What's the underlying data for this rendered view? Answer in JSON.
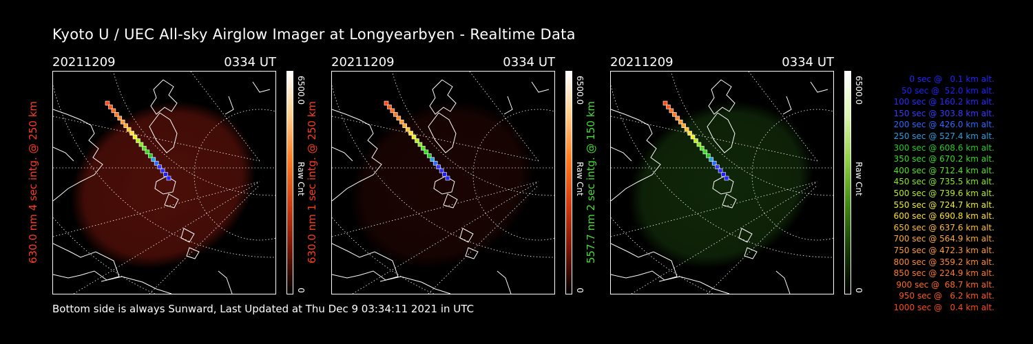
{
  "page": {
    "title": "Kyoto U / UEC All-sky Airglow Imager at Longyearbyen - Realtime Data",
    "footer": "Bottom side is always Sunward, Last Updated at Thu Dec  9 03:34:11 2021 in UTC"
  },
  "panels": [
    {
      "date": "20211209",
      "time": "0334 UT",
      "ylabel": "630.0 nm 4 sec intg. @ 250 km",
      "label_color": "#ff3b1f",
      "airglow_color": "#8b1a0f",
      "airglow_opacity": 0.55,
      "cb_max": "6500.0",
      "cb_unit": "Raw Cnt",
      "cb_min": "0",
      "cb_gradient": [
        "#ffffff",
        "#ffcc88",
        "#ff7a20",
        "#d23a10",
        "#7a1505",
        "#000000"
      ]
    },
    {
      "date": "20211209",
      "time": "0334 UT",
      "ylabel": "630.0 nm 1 sec intg. @ 250 km",
      "label_color": "#ff3b1f",
      "airglow_color": "#3a0905",
      "airglow_opacity": 0.45,
      "cb_max": "6500.0",
      "cb_unit": "Raw Cnt",
      "cb_min": "0",
      "cb_gradient": [
        "#ffffff",
        "#ffcc88",
        "#ff7a20",
        "#d23a10",
        "#7a1505",
        "#000000"
      ]
    },
    {
      "date": "20211209",
      "time": "0334 UT",
      "ylabel": "557.7 nm 2 sec intg. @ 150 km",
      "label_color": "#44dd33",
      "airglow_color": "#1f4d12",
      "airglow_opacity": 0.5,
      "cb_max": "6500.0",
      "cb_unit": "Raw Cnt",
      "cb_min": "0",
      "cb_gradient": [
        "#ffffff",
        "#d9f5b0",
        "#8fd140",
        "#3f8a10",
        "#163d06",
        "#000000"
      ]
    }
  ],
  "legend": [
    {
      "text": "0 sec @   0.1 km alt.",
      "color": "#2424ff"
    },
    {
      "text": "50 sec @  52.0 km alt.",
      "color": "#2020ff"
    },
    {
      "text": "100 sec @ 160.2 km alt.",
      "color": "#2a2aff"
    },
    {
      "text": "150 sec @ 303.8 km alt.",
      "color": "#3a3aff"
    },
    {
      "text": "200 sec @ 426.0 km alt.",
      "color": "#2a6aff"
    },
    {
      "text": "250 sec @ 527.4 km alt.",
      "color": "#2aa0e0"
    },
    {
      "text": "300 sec @ 608.6 km alt.",
      "color": "#22cc22"
    },
    {
      "text": "350 sec @ 670.2 km alt.",
      "color": "#33dd22"
    },
    {
      "text": "400 sec @ 712.4 km alt.",
      "color": "#55e022"
    },
    {
      "text": "450 sec @ 735.5 km alt.",
      "color": "#88e822"
    },
    {
      "text": "500 sec @ 739.6 km alt.",
      "color": "#b8ee22"
    },
    {
      "text": "550 sec @ 724.7 km alt.",
      "color": "#f0f020"
    },
    {
      "text": "600 sec @ 690.8 km alt.",
      "color": "#ffe02a"
    },
    {
      "text": "650 sec @ 637.6 km alt.",
      "color": "#ffc030"
    },
    {
      "text": "700 sec @ 564.9 km alt.",
      "color": "#ffaa30"
    },
    {
      "text": "750 sec @ 472.3 km alt.",
      "color": "#ff9a30"
    },
    {
      "text": "800 sec @ 359.2 km alt.",
      "color": "#ff8a2a"
    },
    {
      "text": "850 sec @ 224.9 km alt.",
      "color": "#ff7a22"
    },
    {
      "text": "900 sec @  68.7 km alt.",
      "color": "#ff6a1e"
    },
    {
      "text": "950 sec @   6.2 km alt.",
      "color": "#ff5a1a"
    },
    {
      "text": "1000 sec @   0.4 km alt.",
      "color": "#ff4a16"
    }
  ]
}
